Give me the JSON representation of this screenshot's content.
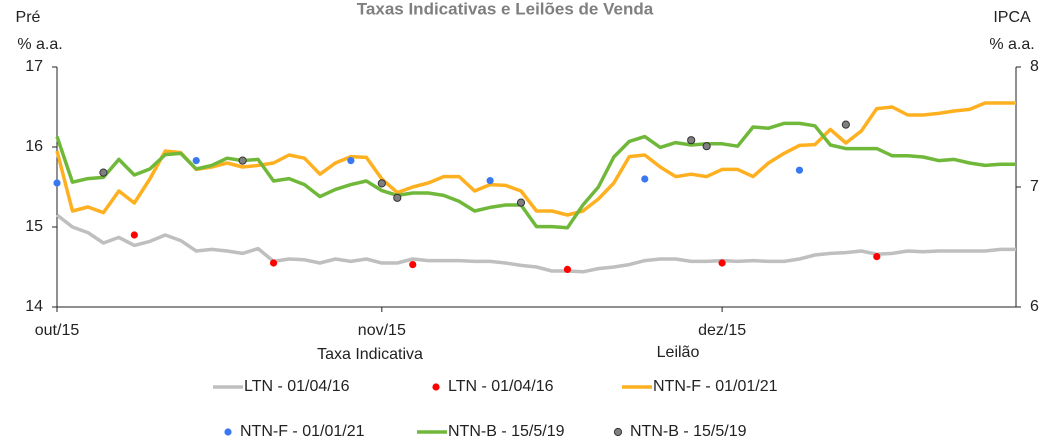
{
  "chart_data": {
    "type": "line",
    "title": "Taxas Indicativas e Leilões de Venda",
    "y_label": [
      "Pré",
      "% a.a."
    ],
    "y2_label": [
      "IPCA",
      "% a.a."
    ],
    "x_labels": [
      "Taxa Indicativa",
      "Leilão"
    ],
    "categories": [
      "out/15",
      null,
      null,
      null,
      null,
      null,
      null,
      null,
      null,
      null,
      null,
      null,
      null,
      null,
      null,
      null,
      null,
      null,
      null,
      null,
      null,
      "nov/15",
      null,
      null,
      null,
      null,
      null,
      null,
      null,
      null,
      null,
      null,
      null,
      null,
      null,
      null,
      null,
      null,
      null,
      null,
      null,
      null,
      null,
      "dez/15",
      null,
      null,
      null,
      null,
      null,
      null,
      null,
      null,
      null,
      null,
      null,
      null,
      null,
      null,
      null,
      null,
      null,
      null,
      null
    ],
    "ylim": [
      14,
      17
    ],
    "yticks": [
      14,
      15,
      16,
      17
    ],
    "y2lim": [
      6,
      8
    ],
    "y2ticks": [
      6,
      7,
      8
    ],
    "series": [
      {
        "name": "LTN - 01/04/16",
        "style": "line",
        "color": "#bfbfbf",
        "values": [
          15.15,
          15.0,
          14.93,
          14.8,
          14.87,
          14.77,
          14.82,
          14.9,
          14.83,
          14.7,
          14.72,
          14.7,
          14.67,
          14.73,
          14.57,
          14.6,
          14.59,
          14.55,
          14.6,
          14.57,
          14.6,
          14.55,
          14.55,
          14.6,
          14.58,
          14.58,
          14.58,
          14.57,
          14.57,
          14.55,
          14.52,
          14.5,
          14.45,
          14.45,
          14.44,
          14.48,
          14.5,
          14.53,
          14.58,
          14.6,
          14.6,
          14.57,
          14.57,
          14.58,
          14.57,
          14.58,
          14.57,
          14.57,
          14.6,
          14.65,
          14.67,
          14.68,
          14.7,
          14.66,
          14.67,
          14.7,
          14.69,
          14.7,
          14.7,
          14.7,
          14.7,
          14.72,
          14.72
        ]
      },
      {
        "name": "LTN - 01/04/16",
        "style": "markers",
        "color": "#ff0000",
        "values": [
          null,
          null,
          null,
          null,
          null,
          14.9,
          null,
          null,
          null,
          null,
          null,
          null,
          null,
          null,
          14.55,
          null,
          null,
          null,
          null,
          null,
          null,
          null,
          null,
          14.53,
          null,
          null,
          null,
          null,
          null,
          null,
          null,
          null,
          null,
          14.47,
          null,
          null,
          null,
          null,
          null,
          null,
          null,
          null,
          null,
          14.55,
          null,
          null,
          null,
          null,
          null,
          null,
          null,
          null,
          null,
          14.63,
          null,
          null,
          null,
          null,
          null,
          null,
          null,
          null,
          null
        ]
      },
      {
        "name": "NTN-F - 01/01/21",
        "style": "line",
        "color": "#ffb020",
        "values": [
          15.95,
          15.2,
          15.25,
          15.18,
          15.45,
          15.3,
          15.6,
          15.95,
          15.93,
          15.72,
          15.75,
          15.8,
          15.75,
          15.77,
          15.8,
          15.9,
          15.86,
          15.66,
          15.8,
          15.88,
          15.87,
          15.6,
          15.43,
          15.5,
          15.55,
          15.63,
          15.63,
          15.45,
          15.53,
          15.52,
          15.45,
          15.2,
          15.2,
          15.15,
          15.2,
          15.35,
          15.55,
          15.88,
          15.9,
          15.75,
          15.63,
          15.66,
          15.63,
          15.72,
          15.72,
          15.63,
          15.8,
          15.92,
          16.02,
          16.03,
          16.22,
          16.05,
          16.2,
          16.48,
          16.5,
          16.4,
          16.4,
          16.42,
          16.45,
          16.47,
          16.55,
          16.55,
          16.55
        ]
      },
      {
        "name": "NTN-F - 01/01/21",
        "style": "markers",
        "color": "#3a78f2",
        "values": [
          15.55,
          null,
          null,
          null,
          null,
          null,
          null,
          null,
          null,
          15.83,
          null,
          null,
          null,
          null,
          null,
          null,
          null,
          null,
          null,
          15.83,
          null,
          null,
          null,
          null,
          null,
          null,
          null,
          null,
          15.58,
          null,
          null,
          null,
          null,
          null,
          null,
          null,
          null,
          null,
          15.6,
          null,
          null,
          null,
          null,
          null,
          null,
          null,
          null,
          null,
          15.71,
          null,
          null,
          null,
          null,
          null,
          null,
          null,
          null,
          null,
          null,
          null,
          null,
          null,
          null
        ]
      },
      {
        "name": "NTN-B - 15/5/19",
        "style": "line",
        "axis": "y2",
        "color": "#70b83a",
        "values": [
          7.42,
          7.04,
          7.07,
          7.08,
          7.23,
          7.1,
          7.15,
          7.27,
          7.28,
          7.15,
          7.18,
          7.24,
          7.22,
          7.23,
          7.05,
          7.07,
          7.02,
          6.92,
          6.98,
          7.02,
          7.05,
          6.97,
          6.93,
          6.95,
          6.95,
          6.93,
          6.88,
          6.8,
          6.83,
          6.85,
          6.85,
          6.67,
          6.67,
          6.66,
          6.85,
          7.0,
          7.25,
          7.38,
          7.42,
          7.33,
          7.37,
          7.35,
          7.36,
          7.36,
          7.34,
          7.5,
          7.49,
          7.53,
          7.53,
          7.51,
          7.35,
          7.32,
          7.32,
          7.32,
          7.26,
          7.26,
          7.25,
          7.22,
          7.23,
          7.2,
          7.18,
          7.19,
          7.19
        ]
      },
      {
        "name": "NTN-B - 15/5/19",
        "style": "markers",
        "axis": "y2",
        "color": "#808080",
        "values": [
          null,
          null,
          null,
          7.12,
          null,
          null,
          null,
          null,
          null,
          null,
          null,
          null,
          7.22,
          null,
          null,
          null,
          null,
          null,
          null,
          null,
          null,
          7.03,
          6.91,
          null,
          null,
          null,
          null,
          null,
          null,
          null,
          6.87,
          null,
          null,
          null,
          null,
          null,
          null,
          null,
          null,
          null,
          null,
          7.39,
          7.34,
          null,
          null,
          null,
          null,
          null,
          null,
          null,
          null,
          7.52,
          null,
          null,
          null,
          null,
          null,
          null,
          null,
          null,
          null,
          null,
          null
        ]
      }
    ]
  }
}
